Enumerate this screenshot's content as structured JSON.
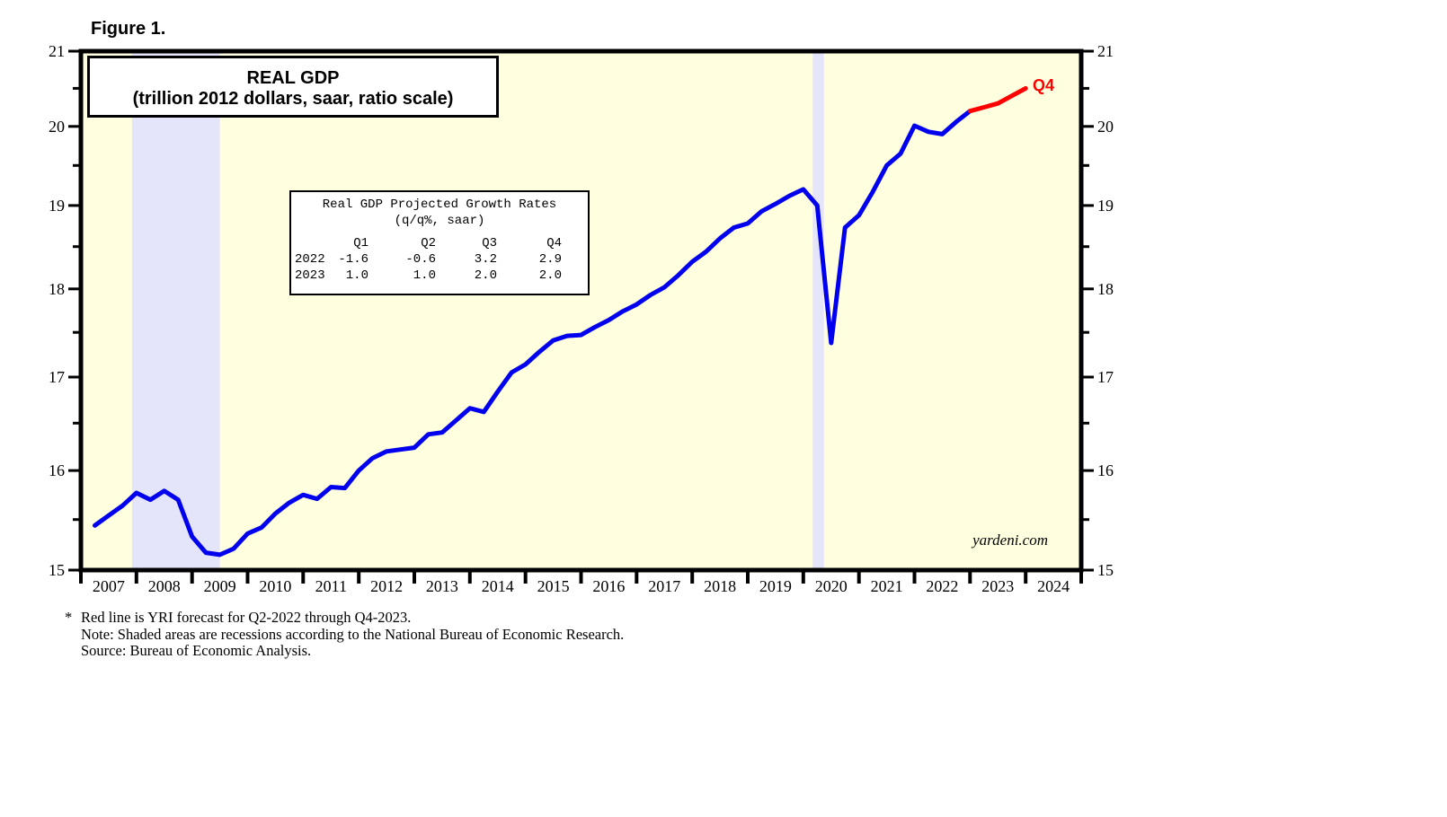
{
  "figure": {
    "label": "Figure 1."
  },
  "chart": {
    "title": "REAL GDP",
    "subtitle": "(trillion 2012 dollars, saar, ratio scale)",
    "watermark": "yardeni.com",
    "forecast_label": "Q4"
  },
  "growth_table": {
    "title": "Real GDP Projected Growth Rates",
    "subtitle": "(q/q%, saar)",
    "columns": [
      "Q1",
      "Q2",
      "Q3",
      "Q4"
    ],
    "rows": [
      {
        "year": "2022",
        "values": [
          "-1.6",
          "-0.6",
          "3.2",
          "2.9"
        ]
      },
      {
        "year": "2023",
        "values": [
          "1.0",
          "1.0",
          "2.0",
          "2.0"
        ]
      }
    ]
  },
  "footnotes": {
    "marker": "*",
    "lines": [
      "Red line is YRI forecast for Q2-2022 through Q4-2023.",
      "Note: Shaded areas are recessions according to the National Bureau of Economic Research.",
      "Source: Bureau of Economic Analysis."
    ]
  },
  "chart_data": {
    "type": "line",
    "title": "REAL GDP",
    "subtitle": "(trillion 2012 dollars, saar, ratio scale)",
    "ylabel": "trillion 2012 dollars",
    "xlabel": "",
    "scale": "log",
    "grid": false,
    "legend": "none",
    "ylim": [
      15,
      21
    ],
    "xlim": [
      2007,
      2025
    ],
    "y_major_ticks": [
      21,
      20,
      19,
      18,
      17,
      16,
      15
    ],
    "y_minor_ticks": [
      20.5,
      19.5,
      18.5,
      17.5,
      16.5,
      15.5
    ],
    "x_year_labels": [
      "2007",
      "2008",
      "2009",
      "2010",
      "2011",
      "2012",
      "2013",
      "2014",
      "2015",
      "2016",
      "2017",
      "2018",
      "2019",
      "2020",
      "2021",
      "2022",
      "2023",
      "2024"
    ],
    "recessions": [
      [
        2007.92,
        2009.5
      ],
      [
        2020.17,
        2020.37
      ]
    ],
    "colors": {
      "background": "#FFFFE0",
      "recession": "#E4E4FA",
      "actual": "#0000EE",
      "forecast": "#FF0000",
      "frame": "#000000"
    },
    "series": [
      {
        "name": "actual",
        "color": "#0000EE",
        "points": [
          [
            2007.25,
            15.44
          ],
          [
            2007.5,
            15.54
          ],
          [
            2007.75,
            15.64
          ],
          [
            2008.0,
            15.77
          ],
          [
            2008.25,
            15.7
          ],
          [
            2008.5,
            15.79
          ],
          [
            2008.75,
            15.7
          ],
          [
            2009.0,
            15.33
          ],
          [
            2009.25,
            15.17
          ],
          [
            2009.5,
            15.15
          ],
          [
            2009.75,
            15.21
          ],
          [
            2010.0,
            15.36
          ],
          [
            2010.25,
            15.42
          ],
          [
            2010.5,
            15.56
          ],
          [
            2010.75,
            15.67
          ],
          [
            2011.0,
            15.75
          ],
          [
            2011.25,
            15.71
          ],
          [
            2011.5,
            15.83
          ],
          [
            2011.75,
            15.82
          ],
          [
            2012.0,
            16.0
          ],
          [
            2012.25,
            16.13
          ],
          [
            2012.5,
            16.2
          ],
          [
            2012.75,
            16.22
          ],
          [
            2013.0,
            16.24
          ],
          [
            2013.25,
            16.38
          ],
          [
            2013.5,
            16.4
          ],
          [
            2013.75,
            16.53
          ],
          [
            2014.0,
            16.66
          ],
          [
            2014.25,
            16.62
          ],
          [
            2014.5,
            16.84
          ],
          [
            2014.75,
            17.05
          ],
          [
            2015.0,
            17.14
          ],
          [
            2015.25,
            17.28
          ],
          [
            2015.5,
            17.41
          ],
          [
            2015.75,
            17.46
          ],
          [
            2016.0,
            17.47
          ],
          [
            2016.25,
            17.56
          ],
          [
            2016.5,
            17.64
          ],
          [
            2016.75,
            17.74
          ],
          [
            2017.0,
            17.82
          ],
          [
            2017.25,
            17.93
          ],
          [
            2017.5,
            18.02
          ],
          [
            2017.75,
            18.16
          ],
          [
            2018.0,
            18.32
          ],
          [
            2018.25,
            18.44
          ],
          [
            2018.5,
            18.6
          ],
          [
            2018.75,
            18.73
          ],
          [
            2019.0,
            18.78
          ],
          [
            2019.25,
            18.93
          ],
          [
            2019.5,
            19.02
          ],
          [
            2019.75,
            19.12
          ],
          [
            2020.0,
            19.2
          ],
          [
            2020.25,
            19.0
          ],
          [
            2020.5,
            17.38
          ],
          [
            2020.75,
            18.73
          ],
          [
            2021.0,
            18.88
          ],
          [
            2021.25,
            19.17
          ],
          [
            2021.5,
            19.5
          ],
          [
            2021.75,
            19.65
          ],
          [
            2022.0,
            20.01
          ],
          [
            2022.25,
            19.93
          ],
          [
            2022.5,
            19.9
          ],
          [
            2022.75,
            20.06
          ],
          [
            2023.0,
            20.2
          ]
        ]
      },
      {
        "name": "forecast",
        "color": "#FF0000",
        "points": [
          [
            2023.0,
            20.2
          ],
          [
            2023.25,
            20.25
          ],
          [
            2023.5,
            20.3
          ],
          [
            2023.75,
            20.4
          ],
          [
            2024.0,
            20.5
          ]
        ]
      }
    ]
  }
}
